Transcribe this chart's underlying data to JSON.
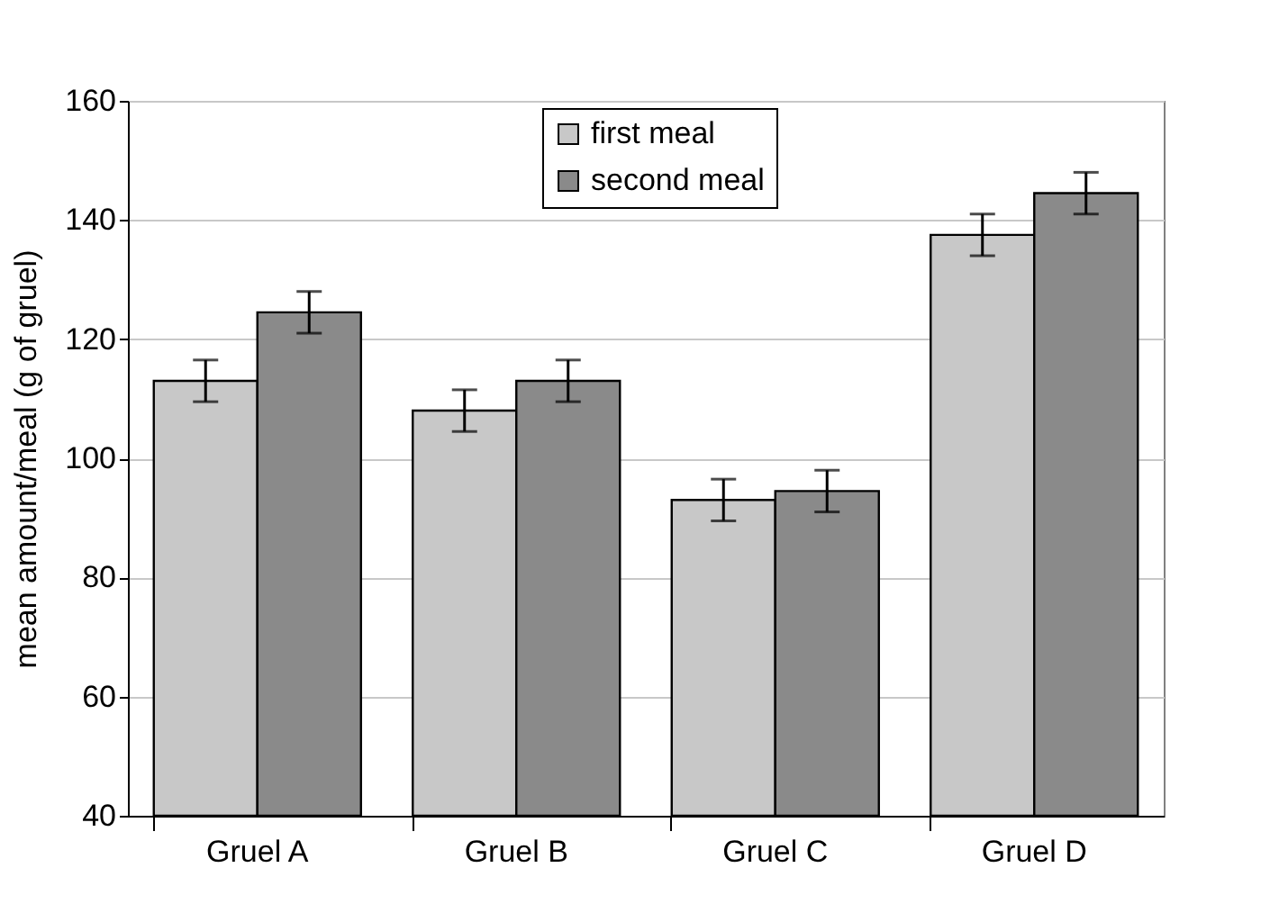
{
  "chart_data": {
    "type": "bar",
    "ylabel": "mean amount/meal (g of gruel)",
    "categories": [
      "Gruel A",
      "Gruel B",
      "Gruel C",
      "Gruel D"
    ],
    "series": [
      {
        "name": "first meal",
        "color": "#c8c8c8",
        "values": [
          113,
          108,
          93,
          137.5
        ],
        "errors": [
          3.5,
          3.5,
          3.5,
          3.5
        ]
      },
      {
        "name": "second meal",
        "color": "#8a8a8a",
        "values": [
          124.5,
          113,
          94.5,
          144.5
        ],
        "errors": [
          3.5,
          3.5,
          3.5,
          3.5
        ]
      }
    ],
    "ylim": [
      40,
      160
    ],
    "yticks": [
      40,
      60,
      80,
      100,
      120,
      140,
      160
    ],
    "grid": "y",
    "legend": "top"
  }
}
